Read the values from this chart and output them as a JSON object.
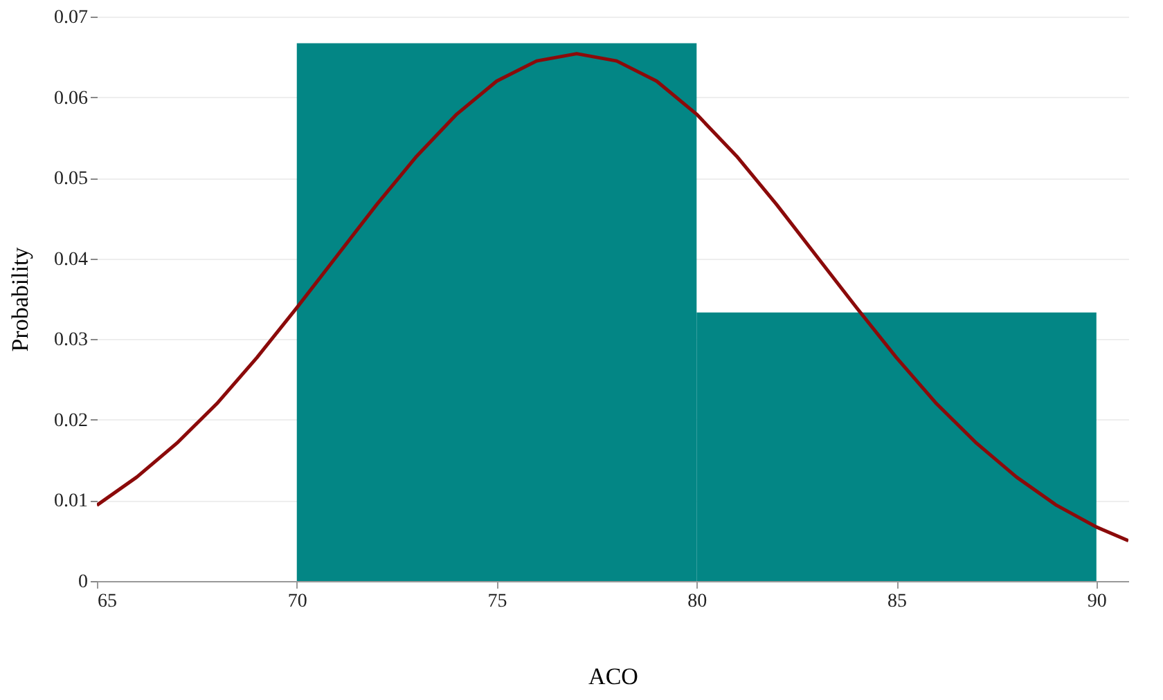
{
  "chart_data": {
    "type": "histogram",
    "xlabel": "ACO",
    "ylabel": "Probability",
    "bins": [
      70,
      80,
      90
    ],
    "values": [
      0.0667,
      0.0333
    ],
    "color": "#038685",
    "series": [
      {
        "type": "line",
        "color": "#8b0a0a",
        "x": [
          65,
          66,
          67,
          68,
          69,
          70,
          71,
          72,
          73,
          74,
          75,
          76,
          77,
          78,
          79,
          80,
          81,
          82,
          83,
          84,
          85,
          86,
          87,
          88,
          89,
          90,
          90.8
        ],
        "values": [
          0.0094,
          0.0129,
          0.0171,
          0.022,
          0.0277,
          0.0339,
          0.0403,
          0.0467,
          0.0527,
          0.0579,
          0.062,
          0.0645,
          0.0654,
          0.0645,
          0.062,
          0.0579,
          0.0527,
          0.0467,
          0.0403,
          0.0339,
          0.0277,
          0.022,
          0.0171,
          0.0129,
          0.0094,
          0.0067,
          0.005
        ]
      }
    ],
    "xlim": [
      65,
      90.8
    ],
    "xticks": [
      65,
      70,
      75,
      80,
      85,
      90
    ],
    "ylim": [
      0,
      0.07
    ],
    "yticks": [
      0,
      0.01,
      0.02,
      0.03,
      0.04,
      0.05,
      0.06,
      0.07
    ],
    "grid": "y",
    "marker": "none",
    "line_style": "solid"
  }
}
